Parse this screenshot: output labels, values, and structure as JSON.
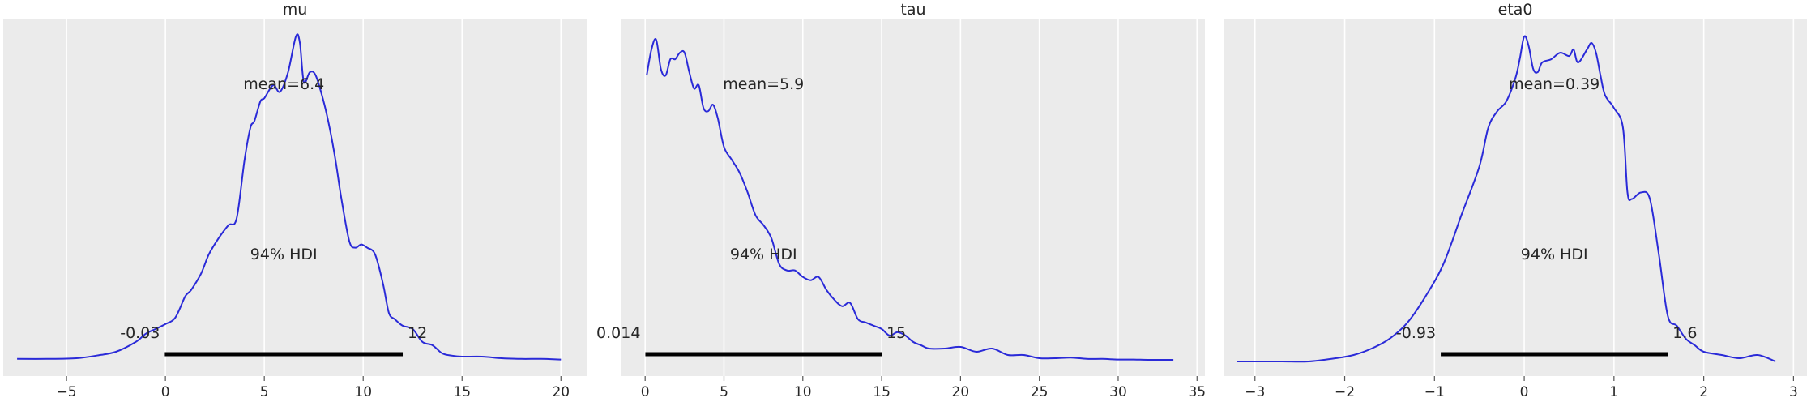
{
  "chart_data": [
    {
      "type": "area",
      "title": "mu",
      "xlim": [
        -8.2,
        21.3
      ],
      "xticks": [
        -5,
        0,
        5,
        10,
        15,
        20
      ],
      "xtick_labels": [
        "−5",
        "0",
        "5",
        "10",
        "15",
        "20"
      ],
      "grid": true,
      "color": "#2a2ad8",
      "mean_label": "mean=6.4",
      "hdi_label": "94% HDI",
      "hdi": [
        -0.03,
        12
      ],
      "hdi_labels": [
        "-0.03",
        "12"
      ],
      "density": {
        "x": [
          -7.5,
          -6,
          -4.5,
          -3.5,
          -2.5,
          -1.5,
          -1,
          -0.5,
          0,
          0.5,
          1,
          1.3,
          1.8,
          2.2,
          2.7,
          3.2,
          3.6,
          4,
          4.3,
          4.5,
          4.8,
          5,
          5.3,
          5.5,
          5.8,
          6.2,
          6.6,
          6.8,
          7,
          7.3,
          7.6,
          8,
          8.3,
          8.6,
          8.9,
          9.3,
          9.6,
          9.9,
          10.2,
          10.6,
          11,
          11.3,
          11.6,
          12,
          12.5,
          13,
          13.5,
          14,
          14.5,
          15,
          16,
          17,
          18,
          19,
          20
        ],
        "y": [
          0.008,
          0.008,
          0.01,
          0.018,
          0.03,
          0.06,
          0.085,
          0.1,
          0.115,
          0.135,
          0.2,
          0.22,
          0.27,
          0.33,
          0.38,
          0.42,
          0.44,
          0.62,
          0.72,
          0.74,
          0.8,
          0.81,
          0.84,
          0.85,
          0.83,
          0.89,
          1.0,
          0.98,
          0.86,
          0.89,
          0.88,
          0.8,
          0.72,
          0.62,
          0.5,
          0.37,
          0.35,
          0.36,
          0.35,
          0.33,
          0.24,
          0.15,
          0.13,
          0.11,
          0.1,
          0.06,
          0.05,
          0.025,
          0.018,
          0.015,
          0.015,
          0.01,
          0.008,
          0.008,
          0.006
        ]
      }
    },
    {
      "type": "area",
      "title": "tau",
      "xlim": [
        -1.5,
        35.5
      ],
      "xticks": [
        0,
        5,
        10,
        15,
        20,
        25,
        30,
        35
      ],
      "xtick_labels": [
        "0",
        "5",
        "10",
        "15",
        "20",
        "25",
        "30",
        "35"
      ],
      "grid": true,
      "color": "#2a2ad8",
      "mean_label": "mean=5.9",
      "hdi_label": "94% HDI",
      "hdi": [
        0.014,
        15
      ],
      "hdi_labels": [
        "0.014",
        "15"
      ],
      "density": {
        "x": [
          0.1,
          0.4,
          0.7,
          1,
          1.3,
          1.6,
          1.9,
          2.2,
          2.5,
          2.8,
          3.1,
          3.4,
          3.7,
          4,
          4.3,
          4.6,
          5,
          5.5,
          6,
          6.5,
          7,
          7.5,
          8,
          8.5,
          9,
          9.5,
          10,
          10.5,
          11,
          11.5,
          12,
          12.5,
          13,
          13.5,
          14,
          14.5,
          15,
          15.5,
          16,
          16.5,
          17,
          17.5,
          18,
          19,
          20,
          21,
          22,
          23,
          24,
          25,
          26,
          27,
          28,
          29,
          30,
          31,
          32,
          33.5
        ],
        "y": [
          0.88,
          0.96,
          0.99,
          0.9,
          0.88,
          0.93,
          0.93,
          0.95,
          0.95,
          0.89,
          0.84,
          0.85,
          0.78,
          0.77,
          0.79,
          0.75,
          0.66,
          0.62,
          0.58,
          0.52,
          0.45,
          0.42,
          0.38,
          0.3,
          0.28,
          0.28,
          0.26,
          0.25,
          0.26,
          0.22,
          0.19,
          0.17,
          0.18,
          0.13,
          0.12,
          0.11,
          0.1,
          0.08,
          0.09,
          0.08,
          0.06,
          0.05,
          0.04,
          0.04,
          0.045,
          0.03,
          0.04,
          0.02,
          0.02,
          0.01,
          0.01,
          0.012,
          0.008,
          0.008,
          0.006,
          0.006,
          0.005,
          0.005
        ]
      }
    },
    {
      "type": "area",
      "title": "eta0",
      "xlim": [
        -3.35,
        3.15
      ],
      "xticks": [
        -3,
        -2,
        -1,
        0,
        1,
        2,
        3
      ],
      "xtick_labels": [
        "−3",
        "−2",
        "−1",
        "0",
        "1",
        "2",
        "3"
      ],
      "grid": true,
      "color": "#2a2ad8",
      "mean_label": "mean=0.39",
      "hdi_label": "94% HDI",
      "hdi": [
        -0.93,
        1.6
      ],
      "hdi_labels": [
        "-0.93",
        "1.6"
      ],
      "density": {
        "x": [
          -3.2,
          -3,
          -2.7,
          -2.4,
          -2.1,
          -1.9,
          -1.7,
          -1.5,
          -1.3,
          -1.1,
          -0.9,
          -0.7,
          -0.5,
          -0.4,
          -0.3,
          -0.2,
          -0.1,
          -0.05,
          0,
          0.05,
          0.1,
          0.15,
          0.2,
          0.3,
          0.4,
          0.5,
          0.55,
          0.6,
          0.7,
          0.75,
          0.8,
          0.85,
          0.9,
          1,
          1.1,
          1.15,
          1.2,
          1.3,
          1.4,
          1.5,
          1.6,
          1.7,
          1.8,
          1.9,
          2,
          2.2,
          2.4,
          2.6,
          2.8
        ],
        "y": [
          0.0,
          0.0,
          0.0,
          0.0,
          0.01,
          0.02,
          0.04,
          0.07,
          0.12,
          0.2,
          0.3,
          0.45,
          0.6,
          0.72,
          0.77,
          0.8,
          0.87,
          0.93,
          1.0,
          0.97,
          0.9,
          0.89,
          0.92,
          0.93,
          0.95,
          0.94,
          0.96,
          0.92,
          0.96,
          0.98,
          0.95,
          0.88,
          0.82,
          0.78,
          0.72,
          0.52,
          0.5,
          0.52,
          0.5,
          0.33,
          0.14,
          0.11,
          0.07,
          0.05,
          0.03,
          0.02,
          0.01,
          0.02,
          0.0
        ]
      }
    }
  ]
}
